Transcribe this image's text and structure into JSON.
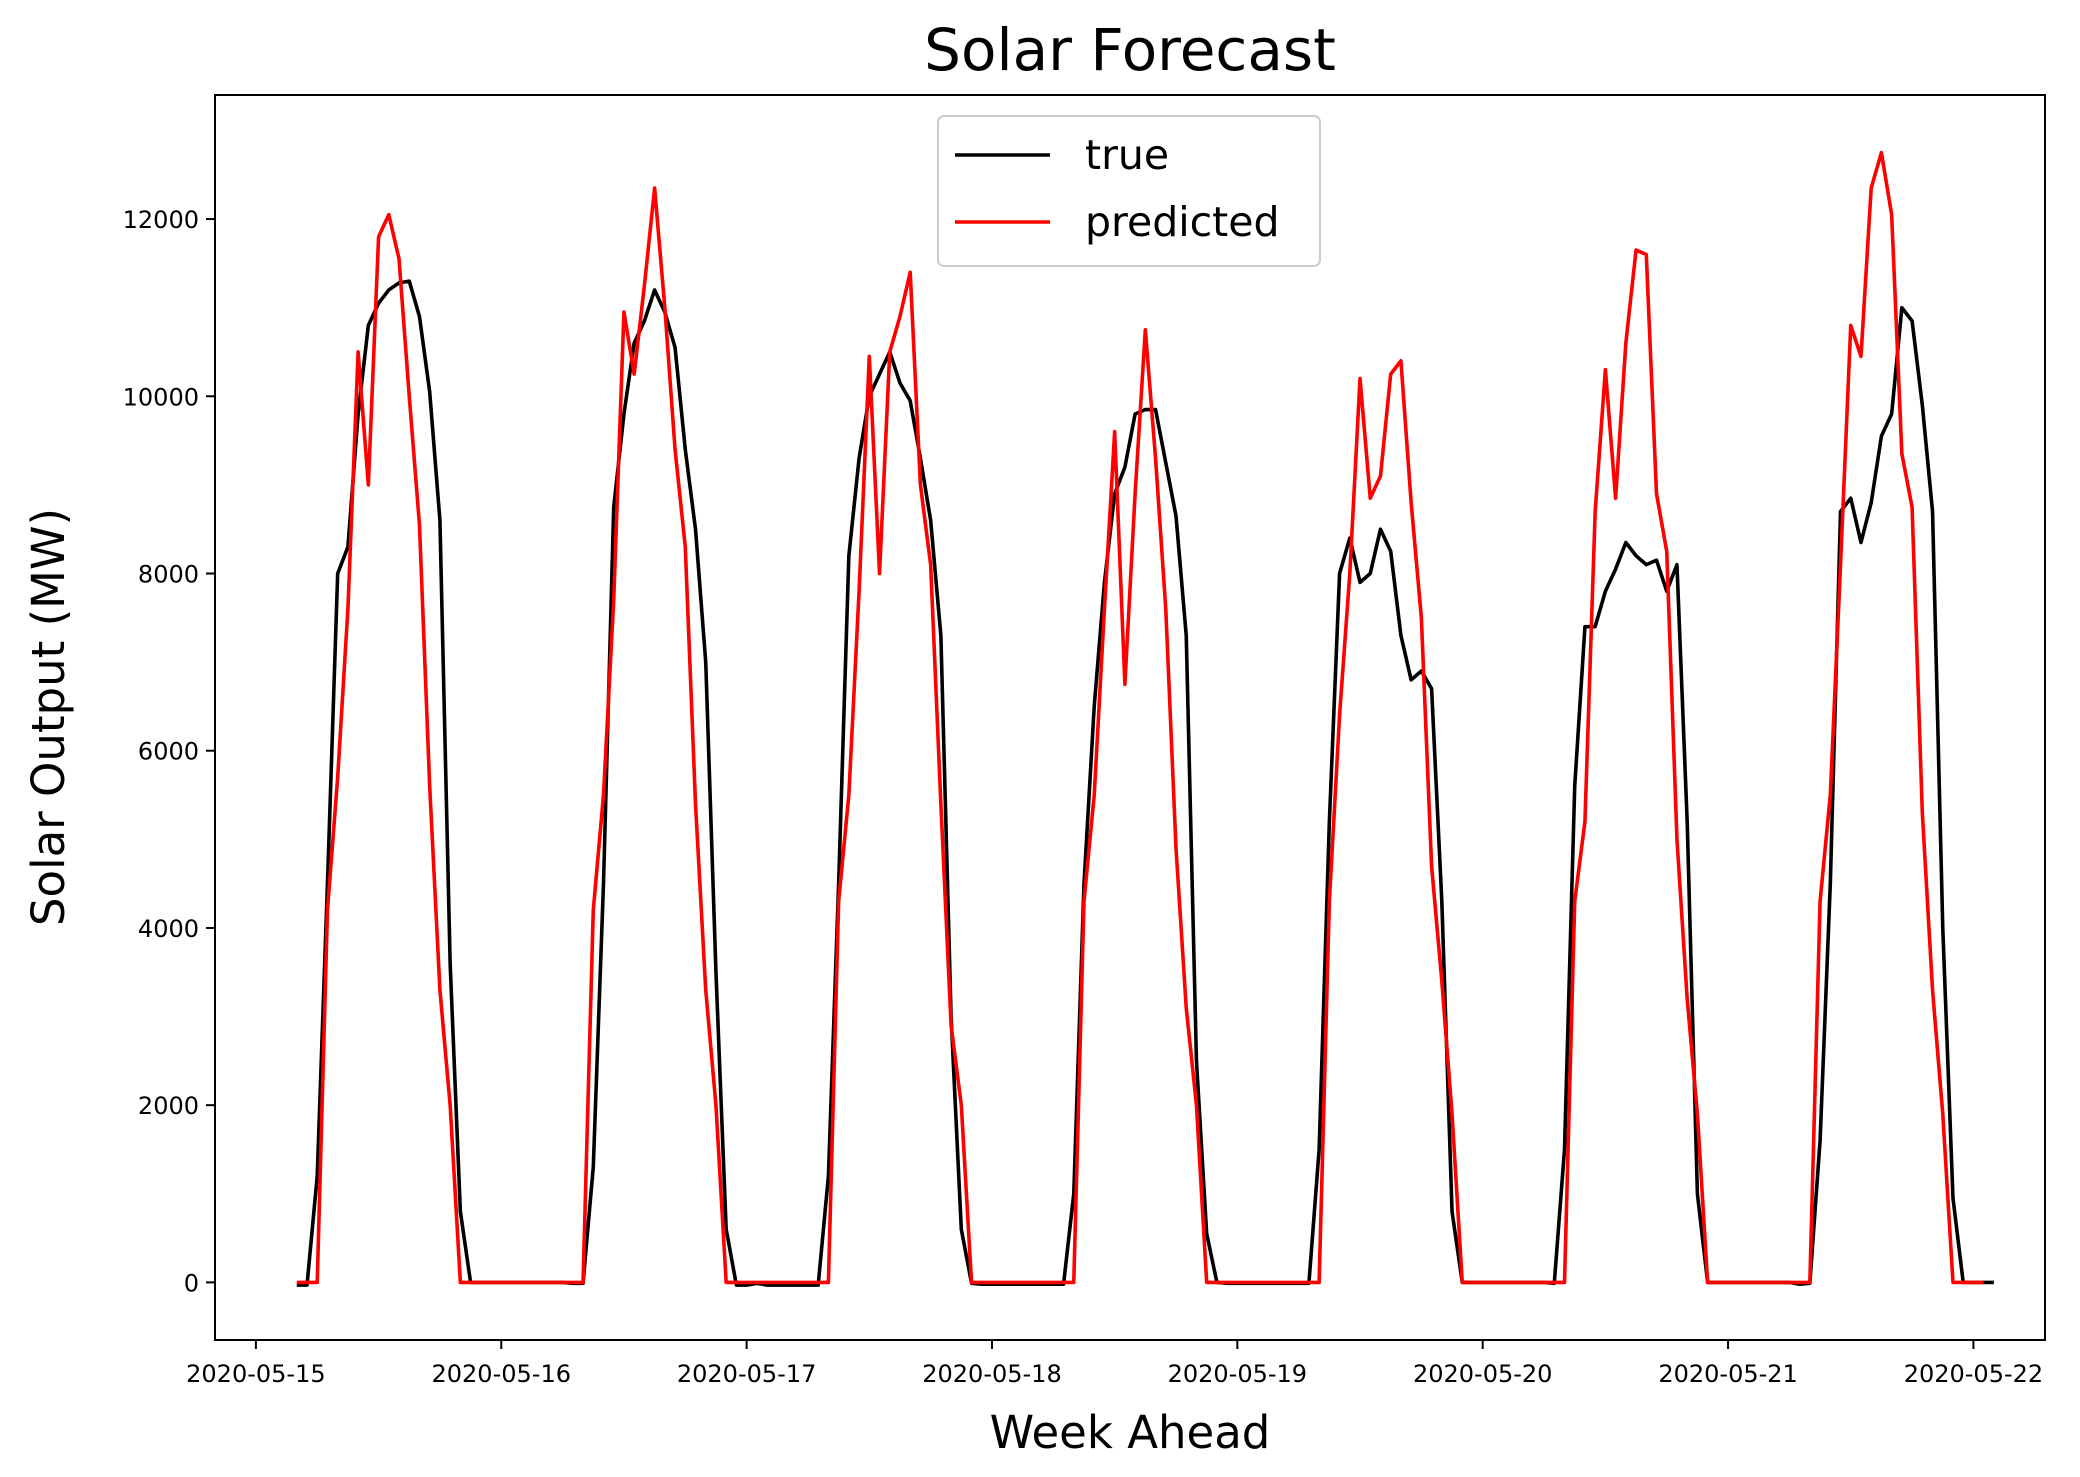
{
  "chart_data": {
    "type": "line",
    "title": "Solar Forecast",
    "xlabel": "Week Ahead",
    "ylabel": "Solar Output (MW)",
    "x_start": "2020-05-15 04:00",
    "x_step_hours": 1,
    "xlim": [
      "2020-05-14 20:00",
      "2020-05-22 07:00"
    ],
    "ylim": [
      -650,
      13400
    ],
    "x_ticks": [
      "2020-05-15",
      "2020-05-16",
      "2020-05-17",
      "2020-05-18",
      "2020-05-19",
      "2020-05-20",
      "2020-05-21",
      "2020-05-22"
    ],
    "y_ticks": [
      0,
      2000,
      4000,
      6000,
      8000,
      10000,
      12000
    ],
    "grid": false,
    "legend_position": "top-center",
    "series": [
      {
        "name": "true",
        "color": "#000000",
        "values": [
          -30,
          -30,
          1200,
          4500,
          8000,
          8300,
          9800,
          10800,
          11050,
          11200,
          11280,
          11300,
          10900,
          10050,
          8600,
          3600,
          800,
          0,
          0,
          0,
          0,
          0,
          0,
          0,
          0,
          0,
          0,
          -10,
          -10,
          1300,
          4500,
          8750,
          9800,
          10600,
          10850,
          11200,
          10950,
          10550,
          9400,
          8500,
          7000,
          3500,
          600,
          -30,
          -30,
          -10,
          -30,
          -30,
          -30,
          -30,
          -30,
          -30,
          1200,
          4500,
          8200,
          9300,
          10000,
          10250,
          10500,
          10150,
          9950,
          9300,
          8600,
          7300,
          3000,
          600,
          -10,
          -20,
          -20,
          -20,
          -20,
          -20,
          -20,
          -20,
          -20,
          -20,
          1000,
          4500,
          6500,
          7900,
          8900,
          9200,
          9800,
          9850,
          9850,
          9250,
          8650,
          7300,
          2500,
          550,
          0,
          -10,
          -10,
          -10,
          -10,
          -10,
          -10,
          -10,
          -10,
          -10,
          1500,
          5200,
          8000,
          8400,
          7900,
          8000,
          8500,
          8250,
          7300,
          6800,
          6900,
          6700,
          4300,
          800,
          0,
          0,
          0,
          0,
          0,
          0,
          0,
          0,
          0,
          -10,
          1500,
          5600,
          7400,
          7400,
          7800,
          8050,
          8350,
          8200,
          8100,
          8150,
          7800,
          8100,
          5200,
          1000,
          0,
          0,
          0,
          0,
          0,
          0,
          0,
          0,
          0,
          -20,
          -10,
          1600,
          4500,
          8700,
          8850,
          8350,
          8800,
          9550,
          9800,
          11000,
          10850,
          9900,
          8700,
          4000,
          950,
          0,
          0,
          0,
          0
        ]
      },
      {
        "name": "predicted",
        "color": "#ff0000",
        "values": [
          0,
          0,
          0,
          4200,
          5700,
          7600,
          10500,
          9000,
          11800,
          12050,
          11550,
          10000,
          8550,
          5600,
          3300,
          2000,
          0,
          0,
          0,
          0,
          0,
          0,
          0,
          0,
          0,
          0,
          0,
          0,
          0,
          4200,
          5500,
          7700,
          10950,
          10250,
          11250,
          12350,
          11000,
          9400,
          8300,
          5400,
          3300,
          2000,
          0,
          0,
          0,
          0,
          0,
          0,
          0,
          0,
          0,
          0,
          0,
          4300,
          5500,
          7800,
          10450,
          8000,
          10500,
          10900,
          11400,
          9000,
          8100,
          5400,
          2900,
          2000,
          0,
          0,
          0,
          0,
          0,
          0,
          0,
          0,
          0,
          0,
          0,
          4300,
          5500,
          7600,
          9600,
          6750,
          8900,
          10750,
          9300,
          7600,
          4900,
          3100,
          2000,
          0,
          0,
          0,
          0,
          0,
          0,
          0,
          0,
          0,
          0,
          0,
          0,
          4300,
          6400,
          8000,
          10200,
          8850,
          9100,
          10250,
          10400,
          8800,
          7500,
          4700,
          3400,
          1900,
          0,
          0,
          0,
          0,
          0,
          0,
          0,
          0,
          0,
          0,
          0,
          4300,
          5200,
          8700,
          10300,
          8850,
          10600,
          11650,
          11600,
          8900,
          8250,
          5000,
          3200,
          1900,
          0,
          0,
          0,
          0,
          0,
          0,
          0,
          0,
          0,
          0,
          0,
          4300,
          5500,
          8100,
          10800,
          10450,
          12350,
          12750,
          12050,
          9350,
          8750,
          5300,
          3300,
          1900,
          0,
          0,
          0,
          0
        ]
      }
    ]
  }
}
